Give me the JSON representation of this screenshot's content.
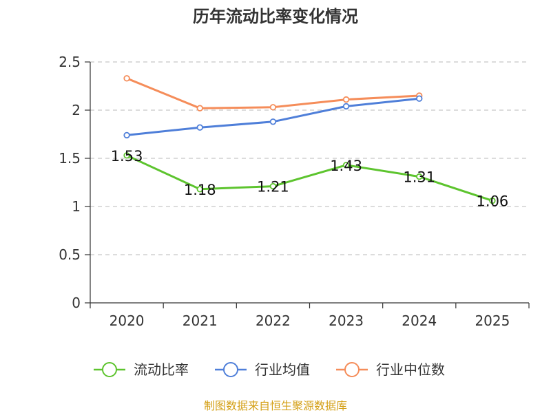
{
  "chart_data": {
    "type": "line",
    "title": "历年流动比率变化情况",
    "categories": [
      "2020",
      "2021",
      "2022",
      "2023",
      "2024",
      "2025"
    ],
    "ylim": [
      0,
      2.5
    ],
    "yticks": [
      "0",
      "0.5",
      "1",
      "1.5",
      "2",
      "2.5"
    ],
    "grid": true,
    "legend_position": "bottom",
    "series": [
      {
        "name": "流动比率",
        "color": "#5dc42e",
        "values": [
          1.53,
          1.18,
          1.21,
          1.43,
          1.31,
          1.06
        ],
        "labels": [
          "1.53",
          "1.18",
          "1.21",
          "1.43",
          "1.31",
          "1.06"
        ]
      },
      {
        "name": "行业均值",
        "color": "#4f7fd9",
        "values": [
          1.74,
          1.82,
          1.88,
          2.04,
          2.12,
          null
        ]
      },
      {
        "name": "行业中位数",
        "color": "#f58d5a",
        "values": [
          2.33,
          2.02,
          2.03,
          2.11,
          2.15,
          null
        ]
      }
    ],
    "source": "制图数据来自恒生聚源数据库"
  }
}
